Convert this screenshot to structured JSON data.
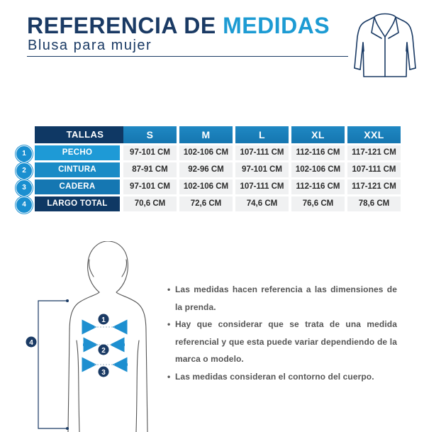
{
  "header": {
    "title_part1": "REFERENCIA DE",
    "title_part2": "MEDIDAS",
    "subtitle": "Blusa para mujer",
    "garment_icon": "shirt-icon"
  },
  "table": {
    "header_label": "TALLAS",
    "sizes": [
      "S",
      "M",
      "L",
      "XL",
      "XXL"
    ],
    "rows": [
      {
        "number": "1",
        "label": "PECHO",
        "values": [
          "97-101 CM",
          "102-106 CM",
          "107-111 CM",
          "112-116 CM",
          "117-121 CM"
        ]
      },
      {
        "number": "2",
        "label": "CINTURA",
        "values": [
          "87-91 CM",
          "92-96 CM",
          "97-101 CM",
          "102-106 CM",
          "107-111 CM"
        ]
      },
      {
        "number": "3",
        "label": "CADERA",
        "values": [
          "97-101 CM",
          "102-106 CM",
          "107-111 CM",
          "112-116 CM",
          "117-121 CM"
        ]
      },
      {
        "number": "4",
        "label": "LARGO TOTAL",
        "values": [
          "70,6 CM",
          "72,6 CM",
          "74,6 CM",
          "76,6 CM",
          "78,6 CM"
        ]
      }
    ]
  },
  "figure": {
    "markers": [
      "1",
      "2",
      "3",
      "4"
    ]
  },
  "notes": [
    "Las medidas hacen referencia a las dimensiones de la prenda.",
    "Hay que considerar que se trata de una medida referencial y que esta puede variar dependiendo de la marca o modelo.",
    "Las medidas consideran el contorno del cuerpo."
  ],
  "colors": {
    "navy": "#1a3a64",
    "blue": "#1d9bd3",
    "header_dark": "#0f3864",
    "cell_bg": "#f0f1f2"
  }
}
